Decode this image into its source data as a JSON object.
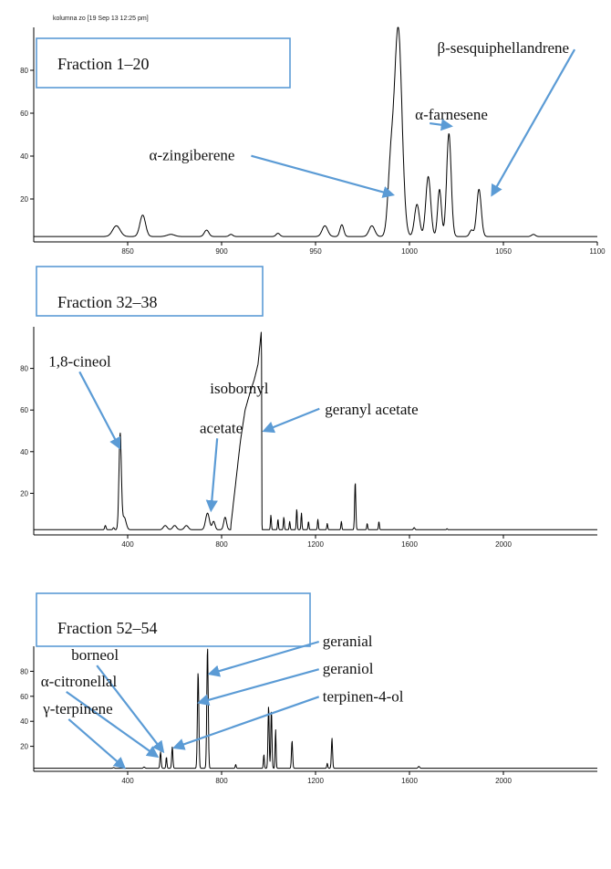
{
  "header": "kolumna zo  [19 Sep 13  12:25 pm]",
  "colors": {
    "accent": "#5b9bd5",
    "trace": "#000000"
  },
  "chart_data": [
    {
      "type": "line",
      "title": "Fraction 1–20",
      "xlim": [
        800,
        1100
      ],
      "ylim": [
        0,
        100
      ],
      "x_ticks": [
        850,
        900,
        950,
        1000,
        1050,
        1100
      ],
      "y_ticks": [
        20,
        40,
        60,
        80
      ],
      "baseline": 2.5,
      "peaks": [
        {
          "x": 844,
          "h": 5,
          "w": 2
        },
        {
          "x": 858,
          "h": 10,
          "w": 1.5
        },
        {
          "x": 873,
          "h": 1,
          "w": 2
        },
        {
          "x": 892,
          "h": 3,
          "w": 1.2
        },
        {
          "x": 905,
          "h": 1,
          "w": 1
        },
        {
          "x": 930,
          "h": 1.5,
          "w": 1
        },
        {
          "x": 955,
          "h": 5,
          "w": 1.5
        },
        {
          "x": 964,
          "h": 5.5,
          "w": 1
        },
        {
          "x": 980,
          "h": 5,
          "w": 1.5
        },
        {
          "x": 990,
          "h": 30,
          "w": 1.5
        },
        {
          "x": 994,
          "h": 97,
          "w": 2
        },
        {
          "x": 1004,
          "h": 15,
          "w": 1.3
        },
        {
          "x": 1010,
          "h": 28,
          "w": 1.3
        },
        {
          "x": 1016,
          "h": 22,
          "w": 1
        },
        {
          "x": 1021,
          "h": 48,
          "w": 1.2
        },
        {
          "x": 1033,
          "h": 3,
          "w": 1
        },
        {
          "x": 1037,
          "h": 22,
          "w": 1.2
        },
        {
          "x": 1066,
          "h": 1,
          "w": 1
        }
      ],
      "annotations": [
        {
          "text": "β-sesquiphellandrene",
          "x": 1085,
          "y": 88,
          "align": "end",
          "ax": 1044,
          "ay": 22
        },
        {
          "text": "α-farnesene",
          "x": 1003,
          "y": 57,
          "align": "start",
          "ax": 1022,
          "ay": 54
        },
        {
          "text": "α-zingiberene",
          "x": 907,
          "y": 38,
          "align": "end",
          "ax": 991,
          "ay": 22
        }
      ]
    },
    {
      "type": "line",
      "title": "Fraction 32–38",
      "xlim": [
        0,
        2400
      ],
      "ylim": [
        0,
        100
      ],
      "x_ticks": [
        400,
        800,
        1200,
        1600,
        2000
      ],
      "y_ticks": [
        20,
        40,
        60,
        80
      ],
      "baseline": 2.5,
      "peaks": [
        {
          "x": 305,
          "h": 2,
          "w": 3
        },
        {
          "x": 340,
          "h": 1,
          "w": 3
        },
        {
          "x": 368,
          "h": 46,
          "w": 5
        },
        {
          "x": 385,
          "h": 6,
          "w": 8
        },
        {
          "x": 560,
          "h": 2,
          "w": 8
        },
        {
          "x": 600,
          "h": 2,
          "w": 8
        },
        {
          "x": 650,
          "h": 2,
          "w": 8
        },
        {
          "x": 740,
          "h": 8,
          "w": 8
        },
        {
          "x": 766,
          "h": 4,
          "w": 6
        },
        {
          "x": 815,
          "h": 6,
          "w": 6
        },
        {
          "x": 1010,
          "h": 7,
          "w": 2
        },
        {
          "x": 1040,
          "h": 5,
          "w": 2
        },
        {
          "x": 1065,
          "h": 6,
          "w": 2
        },
        {
          "x": 1090,
          "h": 4,
          "w": 2
        },
        {
          "x": 1120,
          "h": 10,
          "w": 2
        },
        {
          "x": 1140,
          "h": 8,
          "w": 2
        },
        {
          "x": 1170,
          "h": 4,
          "w": 2
        },
        {
          "x": 1210,
          "h": 5,
          "w": 2
        },
        {
          "x": 1250,
          "h": 3,
          "w": 2
        },
        {
          "x": 1310,
          "h": 4,
          "w": 2
        },
        {
          "x": 1369,
          "h": 23,
          "w": 2.5
        },
        {
          "x": 1420,
          "h": 3,
          "w": 2
        },
        {
          "x": 1470,
          "h": 4,
          "w": 2
        },
        {
          "x": 1620,
          "h": 1,
          "w": 3
        },
        {
          "x": 1760,
          "h": 0.5,
          "w": 2
        }
      ],
      "plateau": [
        [
          840,
          5
        ],
        [
          860,
          25
        ],
        [
          880,
          45
        ],
        [
          900,
          60
        ],
        [
          920,
          68
        ],
        [
          940,
          75
        ],
        [
          955,
          82
        ],
        [
          970,
          99
        ],
        [
          972,
          5
        ]
      ],
      "annotations": [
        {
          "text": "1,8-cineol",
          "x": 63,
          "y": 81,
          "align": "start",
          "ax": 365,
          "ay": 42
        },
        {
          "text": "isobornyl",
          "x": 1000,
          "y": 68,
          "align": "end",
          "ax": null,
          "ay": null
        },
        {
          "text": "acetate",
          "x": 890,
          "y": 49,
          "align": "end",
          "ax": 755,
          "ay": 12
        },
        {
          "text": "geranyl acetate",
          "x": 1240,
          "y": 58,
          "align": "start",
          "ax": 982,
          "ay": 50
        }
      ]
    },
    {
      "type": "line",
      "title": "Fraction 52–54",
      "xlim": [
        0,
        2400
      ],
      "ylim": [
        0,
        100
      ],
      "x_ticks": [
        400,
        800,
        1200,
        1600,
        2000
      ],
      "y_ticks": [
        20,
        40,
        60,
        80
      ],
      "baseline": 2.5,
      "peaks": [
        {
          "x": 340,
          "h": 0.5,
          "w": 3
        },
        {
          "x": 470,
          "h": 1,
          "w": 3
        },
        {
          "x": 540,
          "h": 13,
          "w": 2.5
        },
        {
          "x": 565,
          "h": 9,
          "w": 2
        },
        {
          "x": 590,
          "h": 17,
          "w": 2.5
        },
        {
          "x": 700,
          "h": 77,
          "w": 3
        },
        {
          "x": 740,
          "h": 97,
          "w": 3
        },
        {
          "x": 860,
          "h": 3,
          "w": 2
        },
        {
          "x": 980,
          "h": 11,
          "w": 2
        },
        {
          "x": 1000,
          "h": 50,
          "w": 2.5
        },
        {
          "x": 1012,
          "h": 46,
          "w": 2.5
        },
        {
          "x": 1030,
          "h": 31,
          "w": 2
        },
        {
          "x": 1100,
          "h": 22,
          "w": 2.5
        },
        {
          "x": 1250,
          "h": 4,
          "w": 2
        },
        {
          "x": 1270,
          "h": 24,
          "w": 2.5
        },
        {
          "x": 1640,
          "h": 1.5,
          "w": 3
        }
      ],
      "annotations": [
        {
          "text": "borneol",
          "x": 160,
          "y": 89,
          "align": "start",
          "ax": 550,
          "ay": 16
        },
        {
          "text": "α-citronellal",
          "x": 30,
          "y": 68,
          "align": "start",
          "ax": 525,
          "ay": 12
        },
        {
          "text": "γ-terpinene",
          "x": 40,
          "y": 46,
          "align": "start",
          "ax": 385,
          "ay": 3
        },
        {
          "text": "geranial",
          "x": 1230,
          "y": 100,
          "align": "start",
          "ax": 750,
          "ay": 78
        },
        {
          "text": "geraniol",
          "x": 1230,
          "y": 78,
          "align": "start",
          "ax": 705,
          "ay": 55
        },
        {
          "text": "terpinen-4-ol",
          "x": 1230,
          "y": 56,
          "align": "start",
          "ax": 600,
          "ay": 19
        }
      ]
    }
  ]
}
